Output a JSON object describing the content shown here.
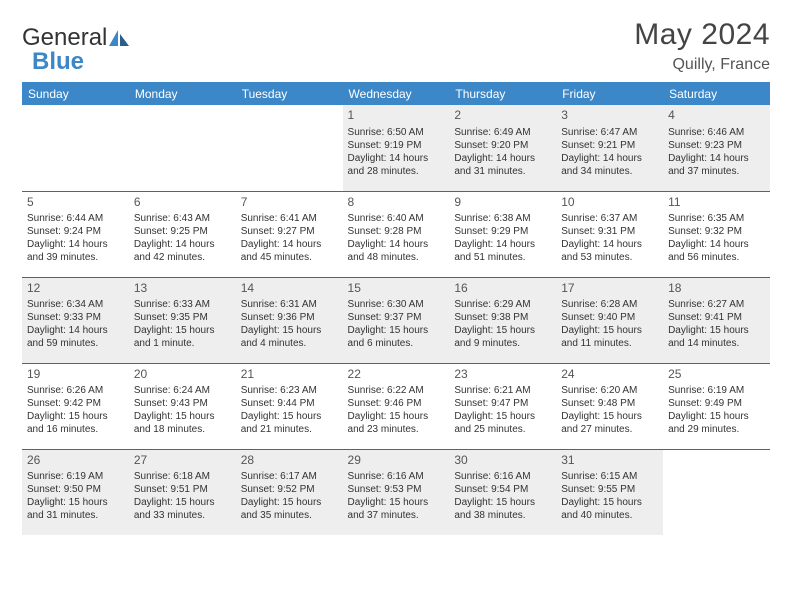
{
  "logo": {
    "part1": "General",
    "part2": "Blue"
  },
  "title": "May 2024",
  "location": "Quilly, France",
  "colors": {
    "header_bg": "#3c87c7",
    "header_text": "#ffffff",
    "row_border": "#2f6ea3",
    "shade_bg": "#eeeeee",
    "page_bg": "#ffffff",
    "logo_gray": "#555555",
    "logo_blue": "#3c87c7"
  },
  "weekdays": [
    "Sunday",
    "Monday",
    "Tuesday",
    "Wednesday",
    "Thursday",
    "Friday",
    "Saturday"
  ],
  "weeks": [
    [
      {
        "day": "",
        "lines": []
      },
      {
        "day": "",
        "lines": []
      },
      {
        "day": "",
        "lines": []
      },
      {
        "day": "1",
        "lines": [
          "Sunrise: 6:50 AM",
          "Sunset: 9:19 PM",
          "Daylight: 14 hours",
          "and 28 minutes."
        ]
      },
      {
        "day": "2",
        "lines": [
          "Sunrise: 6:49 AM",
          "Sunset: 9:20 PM",
          "Daylight: 14 hours",
          "and 31 minutes."
        ]
      },
      {
        "day": "3",
        "lines": [
          "Sunrise: 6:47 AM",
          "Sunset: 9:21 PM",
          "Daylight: 14 hours",
          "and 34 minutes."
        ]
      },
      {
        "day": "4",
        "lines": [
          "Sunrise: 6:46 AM",
          "Sunset: 9:23 PM",
          "Daylight: 14 hours",
          "and 37 minutes."
        ]
      }
    ],
    [
      {
        "day": "5",
        "lines": [
          "Sunrise: 6:44 AM",
          "Sunset: 9:24 PM",
          "Daylight: 14 hours",
          "and 39 minutes."
        ]
      },
      {
        "day": "6",
        "lines": [
          "Sunrise: 6:43 AM",
          "Sunset: 9:25 PM",
          "Daylight: 14 hours",
          "and 42 minutes."
        ]
      },
      {
        "day": "7",
        "lines": [
          "Sunrise: 6:41 AM",
          "Sunset: 9:27 PM",
          "Daylight: 14 hours",
          "and 45 minutes."
        ]
      },
      {
        "day": "8",
        "lines": [
          "Sunrise: 6:40 AM",
          "Sunset: 9:28 PM",
          "Daylight: 14 hours",
          "and 48 minutes."
        ]
      },
      {
        "day": "9",
        "lines": [
          "Sunrise: 6:38 AM",
          "Sunset: 9:29 PM",
          "Daylight: 14 hours",
          "and 51 minutes."
        ]
      },
      {
        "day": "10",
        "lines": [
          "Sunrise: 6:37 AM",
          "Sunset: 9:31 PM",
          "Daylight: 14 hours",
          "and 53 minutes."
        ]
      },
      {
        "day": "11",
        "lines": [
          "Sunrise: 6:35 AM",
          "Sunset: 9:32 PM",
          "Daylight: 14 hours",
          "and 56 minutes."
        ]
      }
    ],
    [
      {
        "day": "12",
        "lines": [
          "Sunrise: 6:34 AM",
          "Sunset: 9:33 PM",
          "Daylight: 14 hours",
          "and 59 minutes."
        ]
      },
      {
        "day": "13",
        "lines": [
          "Sunrise: 6:33 AM",
          "Sunset: 9:35 PM",
          "Daylight: 15 hours",
          "and 1 minute."
        ]
      },
      {
        "day": "14",
        "lines": [
          "Sunrise: 6:31 AM",
          "Sunset: 9:36 PM",
          "Daylight: 15 hours",
          "and 4 minutes."
        ]
      },
      {
        "day": "15",
        "lines": [
          "Sunrise: 6:30 AM",
          "Sunset: 9:37 PM",
          "Daylight: 15 hours",
          "and 6 minutes."
        ]
      },
      {
        "day": "16",
        "lines": [
          "Sunrise: 6:29 AM",
          "Sunset: 9:38 PM",
          "Daylight: 15 hours",
          "and 9 minutes."
        ]
      },
      {
        "day": "17",
        "lines": [
          "Sunrise: 6:28 AM",
          "Sunset: 9:40 PM",
          "Daylight: 15 hours",
          "and 11 minutes."
        ]
      },
      {
        "day": "18",
        "lines": [
          "Sunrise: 6:27 AM",
          "Sunset: 9:41 PM",
          "Daylight: 15 hours",
          "and 14 minutes."
        ]
      }
    ],
    [
      {
        "day": "19",
        "lines": [
          "Sunrise: 6:26 AM",
          "Sunset: 9:42 PM",
          "Daylight: 15 hours",
          "and 16 minutes."
        ]
      },
      {
        "day": "20",
        "lines": [
          "Sunrise: 6:24 AM",
          "Sunset: 9:43 PM",
          "Daylight: 15 hours",
          "and 18 minutes."
        ]
      },
      {
        "day": "21",
        "lines": [
          "Sunrise: 6:23 AM",
          "Sunset: 9:44 PM",
          "Daylight: 15 hours",
          "and 21 minutes."
        ]
      },
      {
        "day": "22",
        "lines": [
          "Sunrise: 6:22 AM",
          "Sunset: 9:46 PM",
          "Daylight: 15 hours",
          "and 23 minutes."
        ]
      },
      {
        "day": "23",
        "lines": [
          "Sunrise: 6:21 AM",
          "Sunset: 9:47 PM",
          "Daylight: 15 hours",
          "and 25 minutes."
        ]
      },
      {
        "day": "24",
        "lines": [
          "Sunrise: 6:20 AM",
          "Sunset: 9:48 PM",
          "Daylight: 15 hours",
          "and 27 minutes."
        ]
      },
      {
        "day": "25",
        "lines": [
          "Sunrise: 6:19 AM",
          "Sunset: 9:49 PM",
          "Daylight: 15 hours",
          "and 29 minutes."
        ]
      }
    ],
    [
      {
        "day": "26",
        "lines": [
          "Sunrise: 6:19 AM",
          "Sunset: 9:50 PM",
          "Daylight: 15 hours",
          "and 31 minutes."
        ]
      },
      {
        "day": "27",
        "lines": [
          "Sunrise: 6:18 AM",
          "Sunset: 9:51 PM",
          "Daylight: 15 hours",
          "and 33 minutes."
        ]
      },
      {
        "day": "28",
        "lines": [
          "Sunrise: 6:17 AM",
          "Sunset: 9:52 PM",
          "Daylight: 15 hours",
          "and 35 minutes."
        ]
      },
      {
        "day": "29",
        "lines": [
          "Sunrise: 6:16 AM",
          "Sunset: 9:53 PM",
          "Daylight: 15 hours",
          "and 37 minutes."
        ]
      },
      {
        "day": "30",
        "lines": [
          "Sunrise: 6:16 AM",
          "Sunset: 9:54 PM",
          "Daylight: 15 hours",
          "and 38 minutes."
        ]
      },
      {
        "day": "31",
        "lines": [
          "Sunrise: 6:15 AM",
          "Sunset: 9:55 PM",
          "Daylight: 15 hours",
          "and 40 minutes."
        ]
      },
      {
        "day": "",
        "lines": []
      }
    ]
  ]
}
